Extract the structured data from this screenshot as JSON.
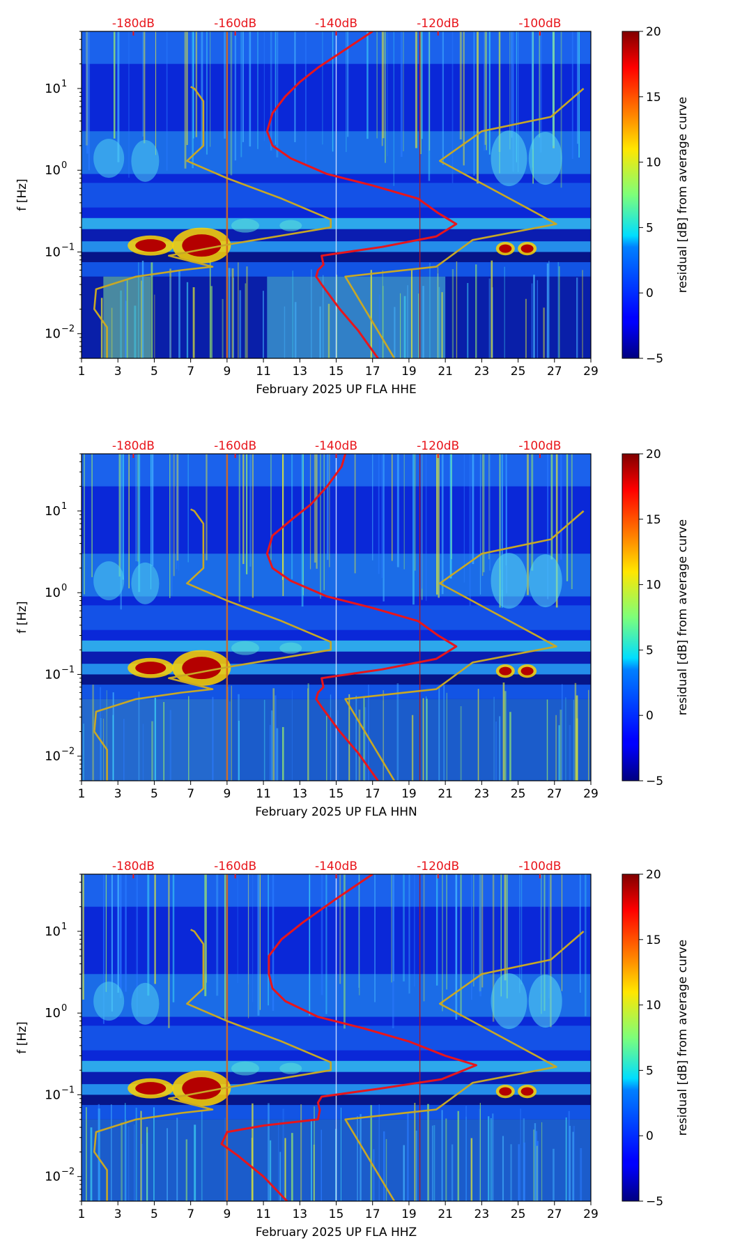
{
  "figure": {
    "panels_count": 3
  },
  "chart_data": [
    {
      "type": "heatmap",
      "title": "",
      "xlabel": "February 2025 UP FLA  HHE",
      "ylabel": "f [Hz]",
      "x_range": [
        1,
        29
      ],
      "x_ticks": [
        "1",
        "3",
        "5",
        "7",
        "9",
        "11",
        "13",
        "15",
        "17",
        "19",
        "21",
        "23",
        "25",
        "27",
        "29"
      ],
      "y_range_hz": [
        0.005,
        50
      ],
      "y_ticks": [
        {
          "value": 0.01,
          "base": "10",
          "exp": "−2"
        },
        {
          "value": 0.1,
          "base": "10",
          "exp": "−1"
        },
        {
          "value": 1,
          "base": "10",
          "exp": "0"
        },
        {
          "value": 10,
          "base": "10",
          "exp": "1"
        }
      ],
      "top_ticks": [
        "-180dB",
        "-160dB",
        "-140dB",
        "-120dB",
        "-100dB"
      ],
      "top_tick_days": [
        3.85,
        9.45,
        15.0,
        20.6,
        26.2
      ],
      "colorbar": {
        "label": "residual [dB] from average curve",
        "min": -5,
        "max": 20,
        "ticks": [
          "20",
          "15",
          "10",
          "5",
          "0",
          "−5"
        ]
      },
      "vertical_markers_day": [
        9.0,
        15.0,
        19.6
      ],
      "series": [
        {
          "name": "red average PSD curve",
          "color": "#e8151b",
          "points": [
            [
              17.3,
              0.005
            ],
            [
              16.2,
              0.011
            ],
            [
              15.2,
              0.02
            ],
            [
              14.2,
              0.04
            ],
            [
              13.9,
              0.05
            ],
            [
              14.0,
              0.06
            ],
            [
              14.3,
              0.07
            ],
            [
              14.2,
              0.09
            ],
            [
              17.5,
              0.115
            ],
            [
              20.5,
              0.155
            ],
            [
              21.6,
              0.22
            ],
            [
              20.6,
              0.3
            ],
            [
              19.5,
              0.45
            ],
            [
              17.0,
              0.65
            ],
            [
              14.5,
              0.9
            ],
            [
              12.5,
              1.4
            ],
            [
              11.5,
              2.0
            ],
            [
              11.2,
              3.0
            ],
            [
              11.5,
              5.0
            ],
            [
              12.2,
              8.0
            ],
            [
              13.0,
              12.0
            ],
            [
              14.0,
              18.0
            ],
            [
              15.5,
              30.0
            ],
            [
              17.0,
              50.0
            ]
          ]
        },
        {
          "name": "gold reference curve",
          "color": "#c8a825",
          "points": [
            [
              2.4,
              0.005
            ],
            [
              2.4,
              0.012
            ],
            [
              1.7,
              0.02
            ],
            [
              1.8,
              0.035
            ],
            [
              4.0,
              0.05
            ],
            [
              6.5,
              0.06
            ],
            [
              8.2,
              0.066
            ],
            [
              5.8,
              0.09
            ],
            [
              9.2,
              0.125
            ],
            [
              14.7,
              0.2
            ],
            [
              14.7,
              0.25
            ],
            [
              12.0,
              0.45
            ],
            [
              9.0,
              0.8
            ],
            [
              6.8,
              1.3
            ],
            [
              7.7,
              2.0
            ],
            [
              7.7,
              7.0
            ],
            [
              7.2,
              10.0
            ],
            [
              7.0,
              10.5
            ]
          ]
        },
        {
          "name": "gold reference curve right",
          "color": "#c8a825",
          "points": [
            [
              18.2,
              0.005
            ],
            [
              15.5,
              0.05
            ],
            [
              20.5,
              0.066
            ],
            [
              22.5,
              0.14
            ],
            [
              27.1,
              0.22
            ],
            [
              26.0,
              0.3
            ],
            [
              20.7,
              1.3
            ],
            [
              23.0,
              3.0
            ],
            [
              26.8,
              4.5
            ],
            [
              28.6,
              10.0
            ]
          ]
        }
      ]
    },
    {
      "type": "heatmap",
      "title": "",
      "xlabel": "February 2025 UP FLA  HHN",
      "ylabel": "f [Hz]",
      "x_range": [
        1,
        29
      ],
      "x_ticks": [
        "1",
        "3",
        "5",
        "7",
        "9",
        "11",
        "13",
        "15",
        "17",
        "19",
        "21",
        "23",
        "25",
        "27",
        "29"
      ],
      "y_range_hz": [
        0.005,
        50
      ],
      "y_ticks": [
        {
          "value": 0.01,
          "base": "10",
          "exp": "−2"
        },
        {
          "value": 0.1,
          "base": "10",
          "exp": "−1"
        },
        {
          "value": 1,
          "base": "10",
          "exp": "0"
        },
        {
          "value": 10,
          "base": "10",
          "exp": "1"
        }
      ],
      "top_ticks": [
        "-180dB",
        "-160dB",
        "-140dB",
        "-120dB",
        "-100dB"
      ],
      "top_tick_days": [
        3.85,
        9.45,
        15.0,
        20.6,
        26.2
      ],
      "colorbar": {
        "label": "residual [dB] from average curve",
        "min": -5,
        "max": 20,
        "ticks": [
          "20",
          "15",
          "10",
          "5",
          "0",
          "−5"
        ]
      },
      "vertical_markers_day": [
        9.0,
        15.0,
        19.6
      ],
      "series": [
        {
          "name": "red average PSD curve",
          "color": "#e8151b",
          "points": [
            [
              17.3,
              0.005
            ],
            [
              16.2,
              0.011
            ],
            [
              15.2,
              0.02
            ],
            [
              14.2,
              0.04
            ],
            [
              13.9,
              0.05
            ],
            [
              14.0,
              0.06
            ],
            [
              14.3,
              0.07
            ],
            [
              14.2,
              0.09
            ],
            [
              17.5,
              0.115
            ],
            [
              20.5,
              0.155
            ],
            [
              21.6,
              0.22
            ],
            [
              20.6,
              0.3
            ],
            [
              19.5,
              0.45
            ],
            [
              17.0,
              0.65
            ],
            [
              14.5,
              0.9
            ],
            [
              12.5,
              1.4
            ],
            [
              11.5,
              2.0
            ],
            [
              11.2,
              3.0
            ],
            [
              11.5,
              5.0
            ],
            [
              12.6,
              8.0
            ],
            [
              13.6,
              12.0
            ],
            [
              14.5,
              20.0
            ],
            [
              15.3,
              35.0
            ],
            [
              15.5,
              50.0
            ]
          ]
        },
        {
          "name": "gold reference curve",
          "color": "#c8a825",
          "points": [
            [
              2.4,
              0.005
            ],
            [
              2.4,
              0.012
            ],
            [
              1.7,
              0.02
            ],
            [
              1.8,
              0.035
            ],
            [
              4.0,
              0.05
            ],
            [
              6.5,
              0.06
            ],
            [
              8.2,
              0.066
            ],
            [
              5.8,
              0.09
            ],
            [
              9.2,
              0.125
            ],
            [
              14.7,
              0.2
            ],
            [
              14.7,
              0.25
            ],
            [
              12.0,
              0.45
            ],
            [
              9.0,
              0.8
            ],
            [
              6.8,
              1.3
            ],
            [
              7.7,
              2.0
            ],
            [
              7.7,
              7.0
            ],
            [
              7.2,
              10.0
            ],
            [
              7.0,
              10.5
            ]
          ]
        },
        {
          "name": "gold reference curve right",
          "color": "#c8a825",
          "points": [
            [
              18.2,
              0.005
            ],
            [
              15.5,
              0.05
            ],
            [
              20.5,
              0.066
            ],
            [
              22.5,
              0.14
            ],
            [
              27.1,
              0.22
            ],
            [
              26.0,
              0.3
            ],
            [
              20.7,
              1.3
            ],
            [
              23.0,
              3.0
            ],
            [
              26.8,
              4.5
            ],
            [
              28.6,
              10.0
            ]
          ]
        }
      ]
    },
    {
      "type": "heatmap",
      "title": "",
      "xlabel": "February 2025 UP FLA  HHZ",
      "ylabel": "f [Hz]",
      "x_range": [
        1,
        29
      ],
      "x_ticks": [
        "1",
        "3",
        "5",
        "7",
        "9",
        "11",
        "13",
        "15",
        "17",
        "19",
        "21",
        "23",
        "25",
        "27",
        "29"
      ],
      "y_range_hz": [
        0.005,
        50
      ],
      "y_ticks": [
        {
          "value": 0.01,
          "base": "10",
          "exp": "−2"
        },
        {
          "value": 0.1,
          "base": "10",
          "exp": "−1"
        },
        {
          "value": 1,
          "base": "10",
          "exp": "0"
        },
        {
          "value": 10,
          "base": "10",
          "exp": "1"
        }
      ],
      "top_ticks": [
        "-180dB",
        "-160dB",
        "-140dB",
        "-120dB",
        "-100dB"
      ],
      "top_tick_days": [
        3.85,
        9.45,
        15.0,
        20.6,
        26.2
      ],
      "colorbar": {
        "label": "residual [dB] from average curve",
        "min": -5,
        "max": 20,
        "ticks": [
          "20",
          "15",
          "10",
          "5",
          "0",
          "−5"
        ]
      },
      "vertical_markers_day": [
        9.0,
        15.0,
        19.6
      ],
      "series": [
        {
          "name": "red average PSD curve",
          "color": "#e8151b",
          "points": [
            [
              12.3,
              0.005
            ],
            [
              11.0,
              0.01
            ],
            [
              9.6,
              0.018
            ],
            [
              8.7,
              0.025
            ],
            [
              9.0,
              0.035
            ],
            [
              11.0,
              0.042
            ],
            [
              14.0,
              0.05
            ],
            [
              14.1,
              0.065
            ],
            [
              14.0,
              0.08
            ],
            [
              14.2,
              0.095
            ],
            [
              17.5,
              0.12
            ],
            [
              20.8,
              0.155
            ],
            [
              22.7,
              0.23
            ],
            [
              21.0,
              0.3
            ],
            [
              19.0,
              0.45
            ],
            [
              16.5,
              0.65
            ],
            [
              14.0,
              0.9
            ],
            [
              12.2,
              1.4
            ],
            [
              11.5,
              2.0
            ],
            [
              11.3,
              3.0
            ],
            [
              11.3,
              5.0
            ],
            [
              12.0,
              8.0
            ],
            [
              13.2,
              13.0
            ],
            [
              15.0,
              25.0
            ],
            [
              17.0,
              50.0
            ]
          ]
        },
        {
          "name": "gold reference curve",
          "color": "#c8a825",
          "points": [
            [
              2.4,
              0.005
            ],
            [
              2.4,
              0.012
            ],
            [
              1.7,
              0.02
            ],
            [
              1.8,
              0.035
            ],
            [
              4.0,
              0.05
            ],
            [
              6.5,
              0.06
            ],
            [
              8.2,
              0.066
            ],
            [
              5.8,
              0.09
            ],
            [
              9.2,
              0.125
            ],
            [
              14.7,
              0.2
            ],
            [
              14.7,
              0.25
            ],
            [
              12.0,
              0.45
            ],
            [
              9.0,
              0.8
            ],
            [
              6.8,
              1.3
            ],
            [
              7.7,
              2.0
            ],
            [
              7.7,
              7.0
            ],
            [
              7.2,
              10.0
            ],
            [
              7.0,
              10.5
            ]
          ]
        },
        {
          "name": "gold reference curve right",
          "color": "#c8a825",
          "points": [
            [
              18.2,
              0.005
            ],
            [
              15.5,
              0.05
            ],
            [
              20.5,
              0.066
            ],
            [
              22.5,
              0.14
            ],
            [
              27.1,
              0.22
            ],
            [
              26.0,
              0.3
            ],
            [
              20.7,
              1.3
            ],
            [
              23.0,
              3.0
            ],
            [
              26.8,
              4.5
            ],
            [
              28.6,
              10.0
            ]
          ]
        }
      ]
    }
  ]
}
